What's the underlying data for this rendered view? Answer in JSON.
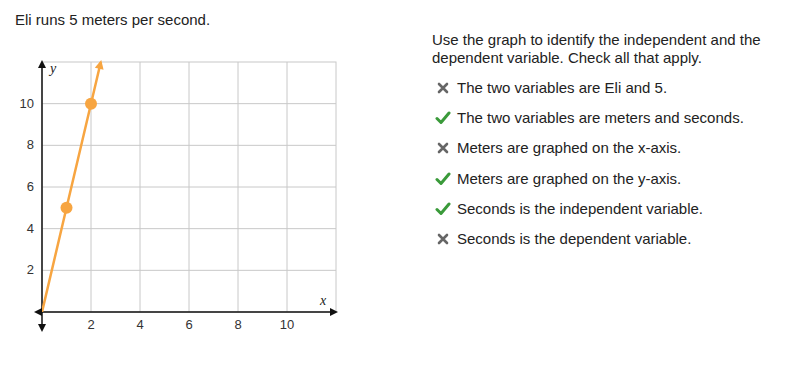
{
  "problem": {
    "text": "Eli runs 5 meters per second."
  },
  "chart_data": {
    "type": "line",
    "xlim": [
      0,
      12
    ],
    "ylim": [
      0,
      12
    ],
    "xticks": [
      2,
      4,
      6,
      8,
      10
    ],
    "yticks": [
      2,
      4,
      6,
      8,
      10
    ],
    "x_label": "x",
    "y_label": "y",
    "grid": true,
    "series": [
      {
        "type": "line",
        "color": "#f7a541",
        "marker": "none",
        "line_style": "solid",
        "x": [
          0,
          1,
          2,
          2.4
        ],
        "values": [
          0,
          5,
          10,
          12
        ]
      },
      {
        "type": "scatter",
        "color": "#f7a541",
        "marker": "circle",
        "x": [
          1,
          2
        ],
        "values": [
          5,
          10
        ]
      }
    ]
  },
  "question": {
    "text": "Use the graph to identify the independent and the dependent variable. Check all that apply.",
    "options": [
      {
        "text": "The two variables are Eli and 5.",
        "correct": false
      },
      {
        "text": "The two variables are meters and seconds.",
        "correct": true
      },
      {
        "text": "Meters are graphed on the x-axis.",
        "correct": false
      },
      {
        "text": "Meters are graphed on the y-axis.",
        "correct": true
      },
      {
        "text": "Seconds is the independent variable.",
        "correct": true
      },
      {
        "text": "Seconds is the dependent variable.",
        "correct": false
      }
    ]
  }
}
